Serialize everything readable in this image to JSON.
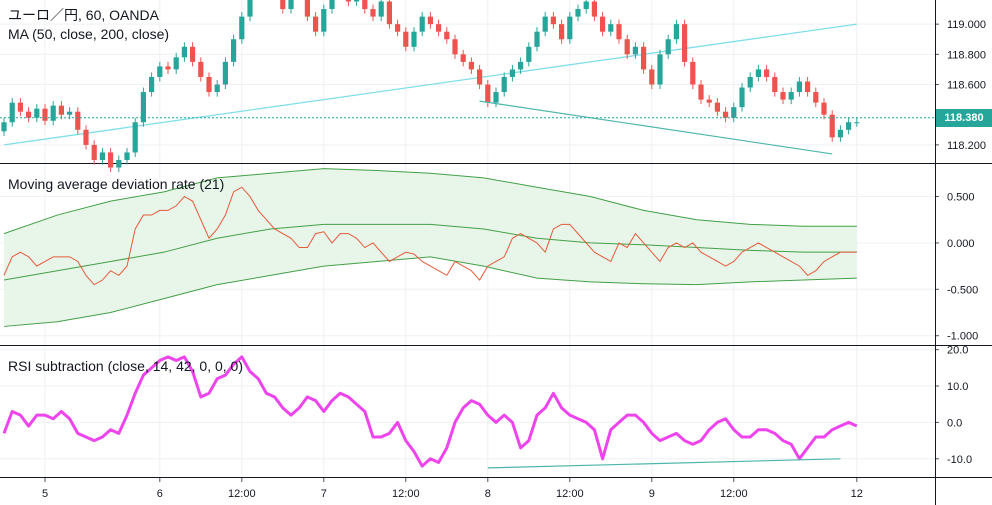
{
  "legend": {
    "main_line1": "ユーロ／円, 60, OANDA",
    "main_line2": "MA (50, close, 200, close)",
    "pane2": "Moving average deviation rate (21)",
    "pane3": "RSI subtraction (close, 14, 42, 0, 0, 0)"
  },
  "last_price": "118.380",
  "colors": {
    "up": "#26a69a",
    "down": "#ef5350",
    "ma": "#80deea",
    "band": "#43a047",
    "band_fill": "#e8f5e9",
    "deviation": "#e65a3c",
    "rsi": "#ee44ee",
    "trendline": "#4db6ac"
  },
  "chart_data": [
    {
      "type": "candlestick",
      "pane": "main",
      "ylim": [
        118.08,
        119.16
      ],
      "y_ticks": [
        {
          "value": 119.0,
          "label": "119.000"
        },
        {
          "value": 118.8,
          "label": "118.800"
        },
        {
          "value": 118.6,
          "label": "118.600"
        },
        {
          "value": 118.2,
          "label": "118.200"
        }
      ],
      "x_ticks": [
        {
          "index": 5,
          "label": "5"
        },
        {
          "index": 19,
          "label": "6"
        },
        {
          "index": 29,
          "label": "12:00"
        },
        {
          "index": 39,
          "label": "7"
        },
        {
          "index": 49,
          "label": "12:00"
        },
        {
          "index": 59,
          "label": "8"
        },
        {
          "index": 69,
          "label": "12:00"
        },
        {
          "index": 79,
          "label": "9"
        },
        {
          "index": 89,
          "label": "12:00"
        },
        {
          "index": 104,
          "label": "12"
        }
      ],
      "closes": [
        118.35,
        118.48,
        118.42,
        118.38,
        118.44,
        118.36,
        118.46,
        118.4,
        118.42,
        118.3,
        118.2,
        118.1,
        118.15,
        118.05,
        118.1,
        118.15,
        118.35,
        118.55,
        118.65,
        118.72,
        118.7,
        118.78,
        118.85,
        118.75,
        118.65,
        118.55,
        118.6,
        118.75,
        118.9,
        119.05,
        119.25,
        119.35,
        119.3,
        119.2,
        119.1,
        119.3,
        119.25,
        119.05,
        118.95,
        119.1,
        119.25,
        119.2,
        119.15,
        119.2,
        119.1,
        119.05,
        119.15,
        119.0,
        118.95,
        118.85,
        118.95,
        119.05,
        119.0,
        118.95,
        118.9,
        118.8,
        118.75,
        118.7,
        118.6,
        118.48,
        118.55,
        118.65,
        118.7,
        118.75,
        118.85,
        118.95,
        119.05,
        119.0,
        118.9,
        119.05,
        119.1,
        119.15,
        119.05,
        118.95,
        119.0,
        118.9,
        118.8,
        118.85,
        118.7,
        118.6,
        118.8,
        118.9,
        119.0,
        118.75,
        118.6,
        118.5,
        118.48,
        118.42,
        118.38,
        118.45,
        118.58,
        118.65,
        118.7,
        118.65,
        118.55,
        118.5,
        118.55,
        118.62,
        118.55,
        118.48,
        118.4,
        118.25,
        118.3,
        118.35,
        118.35
      ],
      "ma_fast": [
        118.2,
        118.28,
        118.36,
        118.44,
        118.52,
        118.6,
        118.68,
        118.76,
        118.84,
        118.92,
        119.0
      ],
      "ma_fast_label": "",
      "ma_slow_visible": false,
      "last": 118.38,
      "trendline": [
        {
          "index": 58,
          "value": 118.49
        },
        {
          "index": 101,
          "value": 118.14
        }
      ]
    },
    {
      "type": "line",
      "pane": "deviation",
      "ylim": [
        -1.1,
        0.85
      ],
      "y_ticks": [
        {
          "value": 0.5,
          "label": "0.500"
        },
        {
          "value": 0.0,
          "label": "0.000"
        },
        {
          "value": -0.5,
          "label": "-0.500"
        },
        {
          "value": -1.0,
          "label": "-1.000"
        }
      ],
      "values": [
        -0.35,
        -0.15,
        -0.1,
        -0.15,
        -0.25,
        -0.2,
        -0.15,
        -0.15,
        -0.15,
        -0.2,
        -0.35,
        -0.45,
        -0.4,
        -0.3,
        -0.35,
        -0.25,
        0.15,
        0.3,
        0.3,
        0.35,
        0.35,
        0.4,
        0.5,
        0.45,
        0.25,
        0.05,
        0.15,
        0.3,
        0.55,
        0.6,
        0.5,
        0.35,
        0.25,
        0.15,
        0.1,
        0.05,
        -0.05,
        -0.05,
        0.1,
        0.12,
        0.0,
        0.1,
        0.1,
        0.05,
        -0.05,
        0.0,
        -0.1,
        -0.2,
        -0.15,
        -0.1,
        -0.12,
        -0.2,
        -0.25,
        -0.3,
        -0.35,
        -0.2,
        -0.25,
        -0.3,
        -0.4,
        -0.25,
        -0.2,
        -0.15,
        0.05,
        0.1,
        0.05,
        0.0,
        -0.1,
        0.15,
        0.2,
        0.2,
        0.1,
        0.0,
        -0.1,
        -0.15,
        -0.2,
        0.0,
        -0.05,
        0.1,
        0.0,
        -0.1,
        -0.2,
        -0.05,
        0.0,
        -0.05,
        0.0,
        -0.1,
        -0.15,
        -0.2,
        -0.25,
        -0.2,
        -0.1,
        -0.05,
        0.0,
        -0.05,
        -0.1,
        -0.15,
        -0.2,
        -0.25,
        -0.35,
        -0.3,
        -0.2,
        -0.15,
        -0.1,
        -0.1,
        -0.1
      ],
      "band_upper": [
        0.1,
        0.3,
        0.45,
        0.55,
        0.7,
        0.75,
        0.8,
        0.78,
        0.75,
        0.7,
        0.6,
        0.5,
        0.35,
        0.25,
        0.2,
        0.18,
        0.18
      ],
      "band_lower": [
        -0.9,
        -0.85,
        -0.75,
        -0.6,
        -0.45,
        -0.35,
        -0.25,
        -0.2,
        -0.15,
        -0.25,
        -0.38,
        -0.42,
        -0.44,
        -0.45,
        -0.42,
        -0.4,
        -0.38
      ],
      "band_mid": [
        -0.4,
        -0.3,
        -0.2,
        -0.1,
        0.05,
        0.15,
        0.2,
        0.2,
        0.2,
        0.15,
        0.05,
        0.0,
        -0.02,
        -0.05,
        -0.08,
        -0.1,
        -0.1
      ]
    },
    {
      "type": "line",
      "pane": "rsi",
      "ylim": [
        -15,
        21
      ],
      "y_ticks": [
        {
          "value": 20,
          "label": "20.0"
        },
        {
          "value": 10,
          "label": "10.0"
        },
        {
          "value": 0,
          "label": "0.0"
        },
        {
          "value": -10,
          "label": "-10.0"
        }
      ],
      "values": [
        -3,
        3,
        2,
        -1,
        2,
        2,
        1,
        3,
        1,
        -3,
        -4,
        -5,
        -4,
        -2,
        -3,
        2,
        8,
        13,
        15,
        17,
        18,
        17,
        18,
        14,
        7,
        8,
        12,
        13,
        16,
        18,
        14,
        12,
        8,
        7,
        4,
        2,
        4,
        7,
        6,
        3,
        6,
        8,
        7,
        5,
        3,
        -4,
        -4,
        -3,
        0,
        -5,
        -8,
        -12,
        -10,
        -11,
        -7,
        0,
        4,
        6,
        5,
        2,
        0,
        2,
        0,
        -7,
        -5,
        2,
        4,
        8,
        4,
        2,
        1,
        0,
        -2,
        -10,
        -2,
        0,
        2,
        2,
        0,
        -3,
        -5,
        -4,
        -3,
        -5,
        -6,
        -5,
        -2,
        0,
        1,
        -2,
        -4,
        -4,
        -2,
        -2,
        -3,
        -5,
        -6,
        -10,
        -7,
        -4,
        -4,
        -2,
        -1,
        0,
        -1
      ],
      "trendline": [
        {
          "index": 59,
          "value": -12.5
        },
        {
          "index": 102,
          "value": -10
        }
      ]
    }
  ]
}
